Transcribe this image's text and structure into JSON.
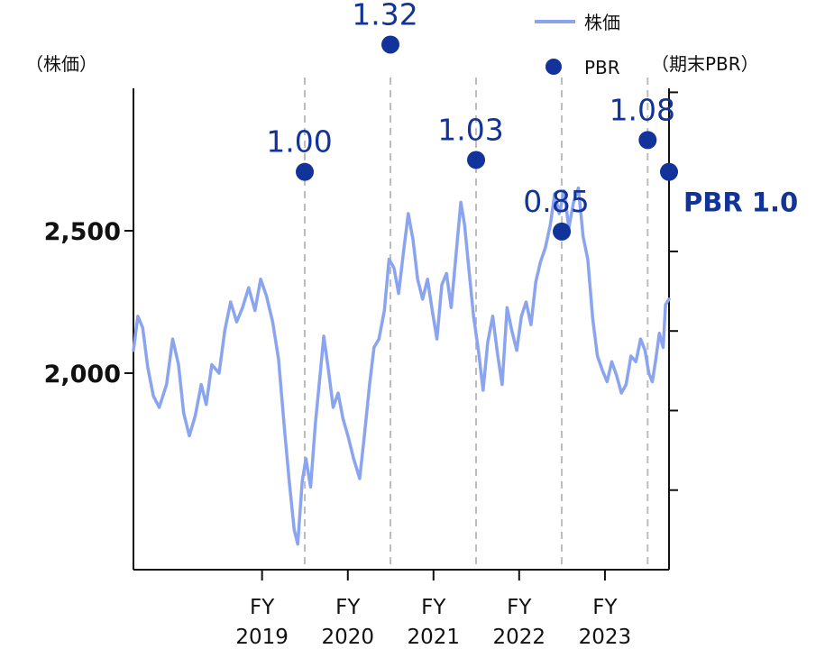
{
  "chart_data": {
    "type": "line",
    "left_axis_label": "（株価）",
    "right_axis_label": "（期末PBR）",
    "yticks_left": [
      {
        "value": 2500,
        "label": "2,500"
      },
      {
        "value": 2000,
        "label": "2,000"
      }
    ],
    "ylim_left": [
      1310,
      3000
    ],
    "ylim_right": [
      0.0,
      1.21
    ],
    "x_categories": [
      {
        "fy": "FY",
        "year": "2019"
      },
      {
        "fy": "FY",
        "year": "2020"
      },
      {
        "fy": "FY",
        "year": "2021"
      },
      {
        "fy": "FY",
        "year": "2022"
      },
      {
        "fy": "FY",
        "year": "2023"
      }
    ],
    "x_boundaries": [
      "2019-04-01",
      "2020-04-01",
      "2021-04-01",
      "2022-04-01",
      "2023-04-01",
      "2024-04-01"
    ],
    "xlim": [
      "2018-04-01",
      "2024-06-30"
    ],
    "legend": [
      {
        "name": "株価",
        "kind": "line",
        "color": "#8aa4ef"
      },
      {
        "name": "PBR",
        "kind": "marker",
        "color": "#12339a"
      }
    ],
    "price_series": {
      "name": "株価",
      "color": "#8aa4ef",
      "points": [
        [
          "2018-04-01",
          2080
        ],
        [
          "2018-04-20",
          2200
        ],
        [
          "2018-05-10",
          2160
        ],
        [
          "2018-06-01",
          2020
        ],
        [
          "2018-06-25",
          1920
        ],
        [
          "2018-07-20",
          1880
        ],
        [
          "2018-08-20",
          1960
        ],
        [
          "2018-09-15",
          2120
        ],
        [
          "2018-10-10",
          2030
        ],
        [
          "2018-11-01",
          1860
        ],
        [
          "2018-11-25",
          1780
        ],
        [
          "2018-12-20",
          1850
        ],
        [
          "2019-01-15",
          1960
        ],
        [
          "2019-02-05",
          1890
        ],
        [
          "2019-03-01",
          2030
        ],
        [
          "2019-04-01",
          2000
        ],
        [
          "2019-04-25",
          2150
        ],
        [
          "2019-05-20",
          2250
        ],
        [
          "2019-06-15",
          2180
        ],
        [
          "2019-07-10",
          2230
        ],
        [
          "2019-08-05",
          2300
        ],
        [
          "2019-09-01",
          2220
        ],
        [
          "2019-09-25",
          2330
        ],
        [
          "2019-10-20",
          2270
        ],
        [
          "2019-11-15",
          2180
        ],
        [
          "2019-12-10",
          2050
        ],
        [
          "2020-01-05",
          1800
        ],
        [
          "2020-01-25",
          1620
        ],
        [
          "2020-02-15",
          1450
        ],
        [
          "2020-03-01",
          1400
        ],
        [
          "2020-03-20",
          1620
        ],
        [
          "2020-04-05",
          1700
        ],
        [
          "2020-04-25",
          1600
        ],
        [
          "2020-05-15",
          1820
        ],
        [
          "2020-06-05",
          2000
        ],
        [
          "2020-06-20",
          2130
        ],
        [
          "2020-07-10",
          2010
        ],
        [
          "2020-07-30",
          1880
        ],
        [
          "2020-08-20",
          1930
        ],
        [
          "2020-09-10",
          1840
        ],
        [
          "2020-10-01",
          1780
        ],
        [
          "2020-10-25",
          1700
        ],
        [
          "2020-11-20",
          1630
        ],
        [
          "2020-12-10",
          1780
        ],
        [
          "2021-01-01",
          1960
        ],
        [
          "2021-01-20",
          2090
        ],
        [
          "2021-02-10",
          2120
        ],
        [
          "2021-03-05",
          2220
        ],
        [
          "2021-03-25",
          2400
        ],
        [
          "2021-04-15",
          2370
        ],
        [
          "2021-05-05",
          2280
        ],
        [
          "2021-05-25",
          2420
        ],
        [
          "2021-06-15",
          2560
        ],
        [
          "2021-07-05",
          2470
        ],
        [
          "2021-07-25",
          2330
        ],
        [
          "2021-08-15",
          2260
        ],
        [
          "2021-09-05",
          2330
        ],
        [
          "2021-09-25",
          2220
        ],
        [
          "2021-10-15",
          2120
        ],
        [
          "2021-11-05",
          2310
        ],
        [
          "2021-11-25",
          2350
        ],
        [
          "2021-12-15",
          2230
        ],
        [
          "2022-01-05",
          2420
        ],
        [
          "2022-01-25",
          2600
        ],
        [
          "2022-02-10",
          2520
        ],
        [
          "2022-03-01",
          2360
        ],
        [
          "2022-03-20",
          2200
        ],
        [
          "2022-04-10",
          2080
        ],
        [
          "2022-04-30",
          1940
        ],
        [
          "2022-05-20",
          2110
        ],
        [
          "2022-06-10",
          2200
        ],
        [
          "2022-06-30",
          2070
        ],
        [
          "2022-07-20",
          1960
        ],
        [
          "2022-08-10",
          2230
        ],
        [
          "2022-08-30",
          2150
        ],
        [
          "2022-09-20",
          2080
        ],
        [
          "2022-10-10",
          2200
        ],
        [
          "2022-10-30",
          2250
        ],
        [
          "2022-11-20",
          2170
        ],
        [
          "2022-12-10",
          2320
        ],
        [
          "2022-12-30",
          2390
        ],
        [
          "2023-01-20",
          2440
        ],
        [
          "2023-02-10",
          2520
        ],
        [
          "2023-03-01",
          2630
        ],
        [
          "2023-03-20",
          2560
        ],
        [
          "2023-04-10",
          2640
        ],
        [
          "2023-04-30",
          2510
        ],
        [
          "2023-05-20",
          2600
        ],
        [
          "2023-06-10",
          2650
        ],
        [
          "2023-06-30",
          2480
        ],
        [
          "2023-07-20",
          2400
        ],
        [
          "2023-08-10",
          2190
        ],
        [
          "2023-08-30",
          2060
        ],
        [
          "2023-09-20",
          2010
        ],
        [
          "2023-10-10",
          1970
        ],
        [
          "2023-10-30",
          2040
        ],
        [
          "2023-11-20",
          1990
        ],
        [
          "2023-12-10",
          1930
        ],
        [
          "2023-12-30",
          1960
        ],
        [
          "2024-01-20",
          2060
        ],
        [
          "2024-02-10",
          2040
        ],
        [
          "2024-03-01",
          2120
        ],
        [
          "2024-03-20",
          2080
        ],
        [
          "2024-04-05",
          2000
        ],
        [
          "2024-04-20",
          1970
        ],
        [
          "2024-05-05",
          2050
        ],
        [
          "2024-05-20",
          2140
        ],
        [
          "2024-06-05",
          2090
        ],
        [
          "2024-06-15",
          2240
        ],
        [
          "2024-06-30",
          2260
        ]
      ]
    },
    "pbr_series": {
      "name": "PBR",
      "color": "#12339a",
      "points": [
        {
          "x": "2020-03-31",
          "y": 1.0,
          "label": "1.00"
        },
        {
          "x": "2021-03-31",
          "y": 1.32,
          "label": "1.32"
        },
        {
          "x": "2022-03-31",
          "y": 1.03,
          "label": "1.03"
        },
        {
          "x": "2023-03-31",
          "y": 0.85,
          "label": "0.85"
        },
        {
          "x": "2024-03-31",
          "y": 1.08,
          "label": "1.08"
        }
      ],
      "current": {
        "x": "2024-06-30",
        "y": 1.0,
        "label": "PBR 1.0"
      }
    }
  }
}
